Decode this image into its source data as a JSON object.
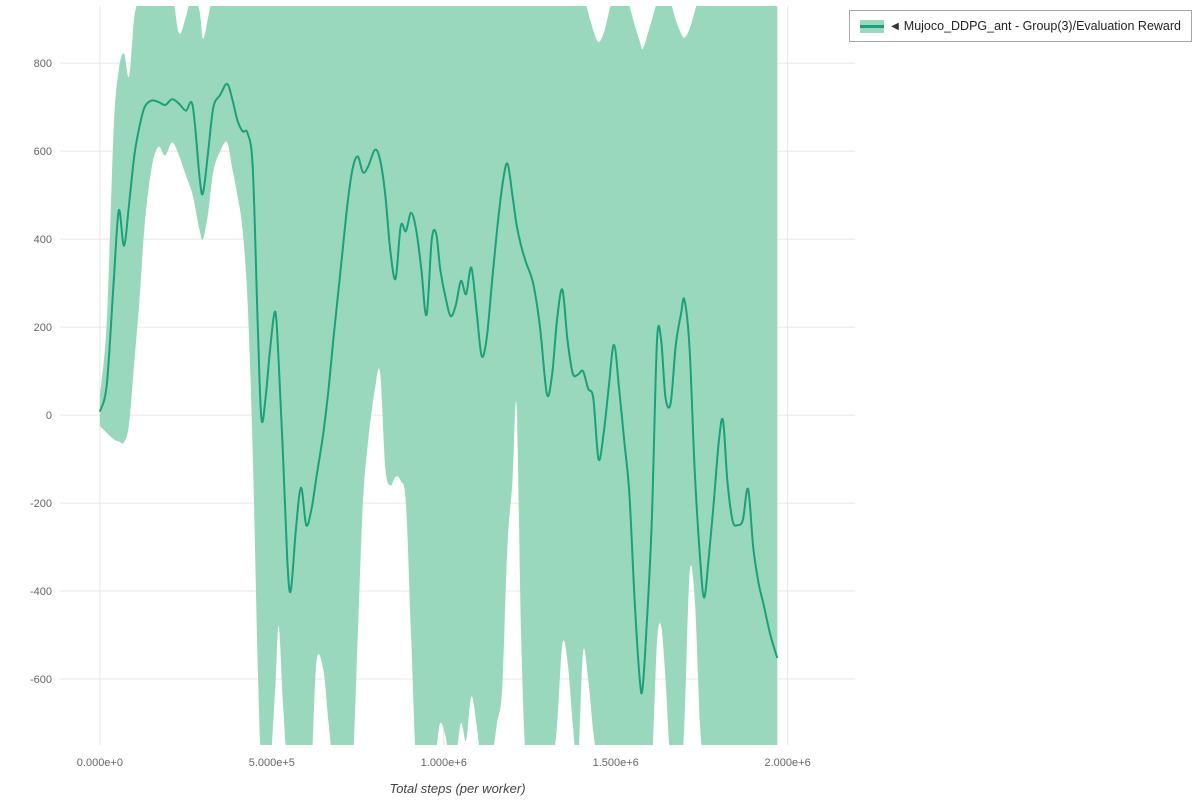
{
  "legend": {
    "collapse_icon": "◀",
    "label": "Mujoco_DDPG_ant - Group(3)/Evaluation Reward"
  },
  "axes": {
    "x_label": "Total steps (per worker)",
    "x_ticks": [
      {
        "value": 0,
        "label": "0.000e+0"
      },
      {
        "value": 500000,
        "label": "5.000e+5"
      },
      {
        "value": 1000000,
        "label": "1.000e+6"
      },
      {
        "value": 1500000,
        "label": "1.500e+6"
      },
      {
        "value": 2000000,
        "label": "2.000e+6"
      }
    ],
    "y_ticks": [
      {
        "value": 800,
        "label": "800"
      },
      {
        "value": 600,
        "label": "600"
      },
      {
        "value": 400,
        "label": "400"
      },
      {
        "value": 200,
        "label": "200"
      },
      {
        "value": 0,
        "label": "0"
      },
      {
        "value": -200,
        "label": "-200"
      },
      {
        "value": -400,
        "label": "-400"
      },
      {
        "value": -600,
        "label": "-600"
      }
    ]
  },
  "colors": {
    "line": "#1aa179",
    "band": "#9ad8be",
    "grid": "#e7e7e7",
    "tick_text": "#666666",
    "axis_label": "#444444"
  },
  "chart_data": {
    "type": "line",
    "title": "",
    "xlabel": "Total steps (per worker)",
    "ylabel": "",
    "xlim": [
      -116000,
      2196000
    ],
    "ylim": [
      -750,
      930
    ],
    "grid": true,
    "legend_position": "top-right",
    "series": [
      {
        "name": "Mujoco_DDPG_ant - Group(3)/Evaluation Reward",
        "x": [
          0,
          20000,
          40000,
          55000,
          70000,
          85000,
          100000,
          115000,
          130000,
          150000,
          170000,
          190000,
          210000,
          230000,
          250000,
          270000,
          290000,
          300000,
          315000,
          330000,
          350000,
          370000,
          385000,
          400000,
          415000,
          430000,
          445000,
          460000,
          470000,
          482000,
          495000,
          510000,
          520000,
          532000,
          545000,
          555000,
          570000,
          585000,
          600000,
          615000,
          630000,
          650000,
          665000,
          680000,
          700000,
          720000,
          735000,
          750000,
          765000,
          780000,
          800000,
          815000,
          830000,
          845000,
          860000,
          875000,
          890000,
          905000,
          920000,
          935000,
          950000,
          965000,
          978000,
          990000,
          1005000,
          1020000,
          1035000,
          1050000,
          1065000,
          1080000,
          1095000,
          1110000,
          1125000,
          1140000,
          1155000,
          1170000,
          1185000,
          1200000,
          1212000,
          1225000,
          1240000,
          1260000,
          1280000,
          1300000,
          1315000,
          1330000,
          1345000,
          1360000,
          1375000,
          1390000,
          1405000,
          1420000,
          1435000,
          1450000,
          1465000,
          1480000,
          1495000,
          1510000,
          1525000,
          1540000,
          1555000,
          1570000,
          1578000,
          1590000,
          1605000,
          1620000,
          1632000,
          1645000,
          1660000,
          1675000,
          1690000,
          1700000,
          1715000,
          1730000,
          1745000,
          1757000,
          1770000,
          1785000,
          1800000,
          1812000,
          1825000,
          1840000,
          1855000,
          1870000,
          1885000,
          1900000,
          1915000,
          1930000,
          1950000,
          1970000
        ],
        "mean": [
          8,
          70,
          300,
          465,
          385,
          480,
          590,
          655,
          700,
          715,
          712,
          705,
          718,
          708,
          692,
          703,
          540,
          505,
          600,
          700,
          728,
          753,
          718,
          670,
          645,
          640,
          555,
          180,
          -10,
          40,
          150,
          235,
          120,
          -80,
          -330,
          -400,
          -260,
          -165,
          -250,
          -215,
          -140,
          -40,
          60,
          180,
          330,
          480,
          560,
          588,
          552,
          565,
          603,
          580,
          500,
          372,
          310,
          430,
          418,
          460,
          420,
          330,
          228,
          398,
          412,
          330,
          268,
          225,
          250,
          305,
          275,
          335,
          240,
          135,
          175,
          300,
          420,
          520,
          572,
          498,
          432,
          385,
          345,
          300,
          200,
          48,
          92,
          220,
          285,
          170,
          95,
          92,
          100,
          60,
          38,
          -100,
          -42,
          65,
          160,
          60,
          -60,
          -180,
          -420,
          -600,
          -622,
          -480,
          -240,
          165,
          172,
          40,
          28,
          160,
          230,
          262,
          150,
          -130,
          -320,
          -415,
          -330,
          -200,
          -60,
          -12,
          -150,
          -240,
          -250,
          -238,
          -168,
          -300,
          -380,
          -430,
          -500,
          -552
        ],
        "band_low": [
          -25,
          -40,
          -55,
          -60,
          -62,
          -20,
          120,
          260,
          430,
          560,
          610,
          590,
          620,
          590,
          545,
          500,
          420,
          400,
          460,
          555,
          600,
          620,
          560,
          500,
          420,
          250,
          -100,
          -600,
          -800,
          -800,
          -800,
          -620,
          -480,
          -650,
          -800,
          -800,
          -800,
          -800,
          -800,
          -800,
          -560,
          -580,
          -700,
          -800,
          -800,
          -800,
          -800,
          -500,
          -200,
          -60,
          60,
          95,
          -120,
          -160,
          -140,
          -150,
          -200,
          -500,
          -800,
          -800,
          -800,
          -800,
          -760,
          -700,
          -730,
          -800,
          -780,
          -700,
          -740,
          -640,
          -700,
          -800,
          -800,
          -780,
          -700,
          -620,
          -300,
          -150,
          20,
          -500,
          -800,
          -800,
          -800,
          -800,
          -800,
          -700,
          -520,
          -560,
          -700,
          -800,
          -540,
          -600,
          -720,
          -800,
          -800,
          -800,
          -800,
          -800,
          -800,
          -800,
          -800,
          -800,
          -800,
          -800,
          -800,
          -520,
          -480,
          -600,
          -800,
          -800,
          -800,
          -700,
          -360,
          -420,
          -700,
          -800,
          -800,
          -800,
          -800,
          -800,
          -800,
          -800,
          -800,
          -800,
          -800,
          -800,
          -800,
          -800,
          -800,
          -800
        ],
        "band_high": [
          45,
          215,
          645,
          785,
          822,
          770,
          905,
          945,
          960,
          960,
          960,
          960,
          960,
          868,
          905,
          960,
          918,
          855,
          905,
          960,
          960,
          960,
          960,
          960,
          960,
          960,
          960,
          960,
          960,
          960,
          960,
          960,
          960,
          960,
          960,
          960,
          960,
          960,
          960,
          960,
          960,
          960,
          960,
          960,
          960,
          960,
          960,
          960,
          960,
          960,
          960,
          960,
          960,
          960,
          960,
          960,
          960,
          960,
          960,
          960,
          960,
          960,
          960,
          960,
          960,
          960,
          960,
          960,
          960,
          960,
          960,
          960,
          960,
          960,
          960,
          960,
          960,
          960,
          960,
          960,
          960,
          960,
          960,
          960,
          960,
          960,
          960,
          960,
          960,
          960,
          960,
          915,
          875,
          848,
          868,
          915,
          960,
          960,
          960,
          930,
          888,
          850,
          832,
          858,
          898,
          938,
          960,
          960,
          938,
          898,
          868,
          858,
          878,
          918,
          960,
          960,
          960,
          960,
          960,
          960,
          960,
          960,
          960,
          960,
          960,
          960,
          960,
          960,
          960,
          960
        ]
      }
    ]
  }
}
